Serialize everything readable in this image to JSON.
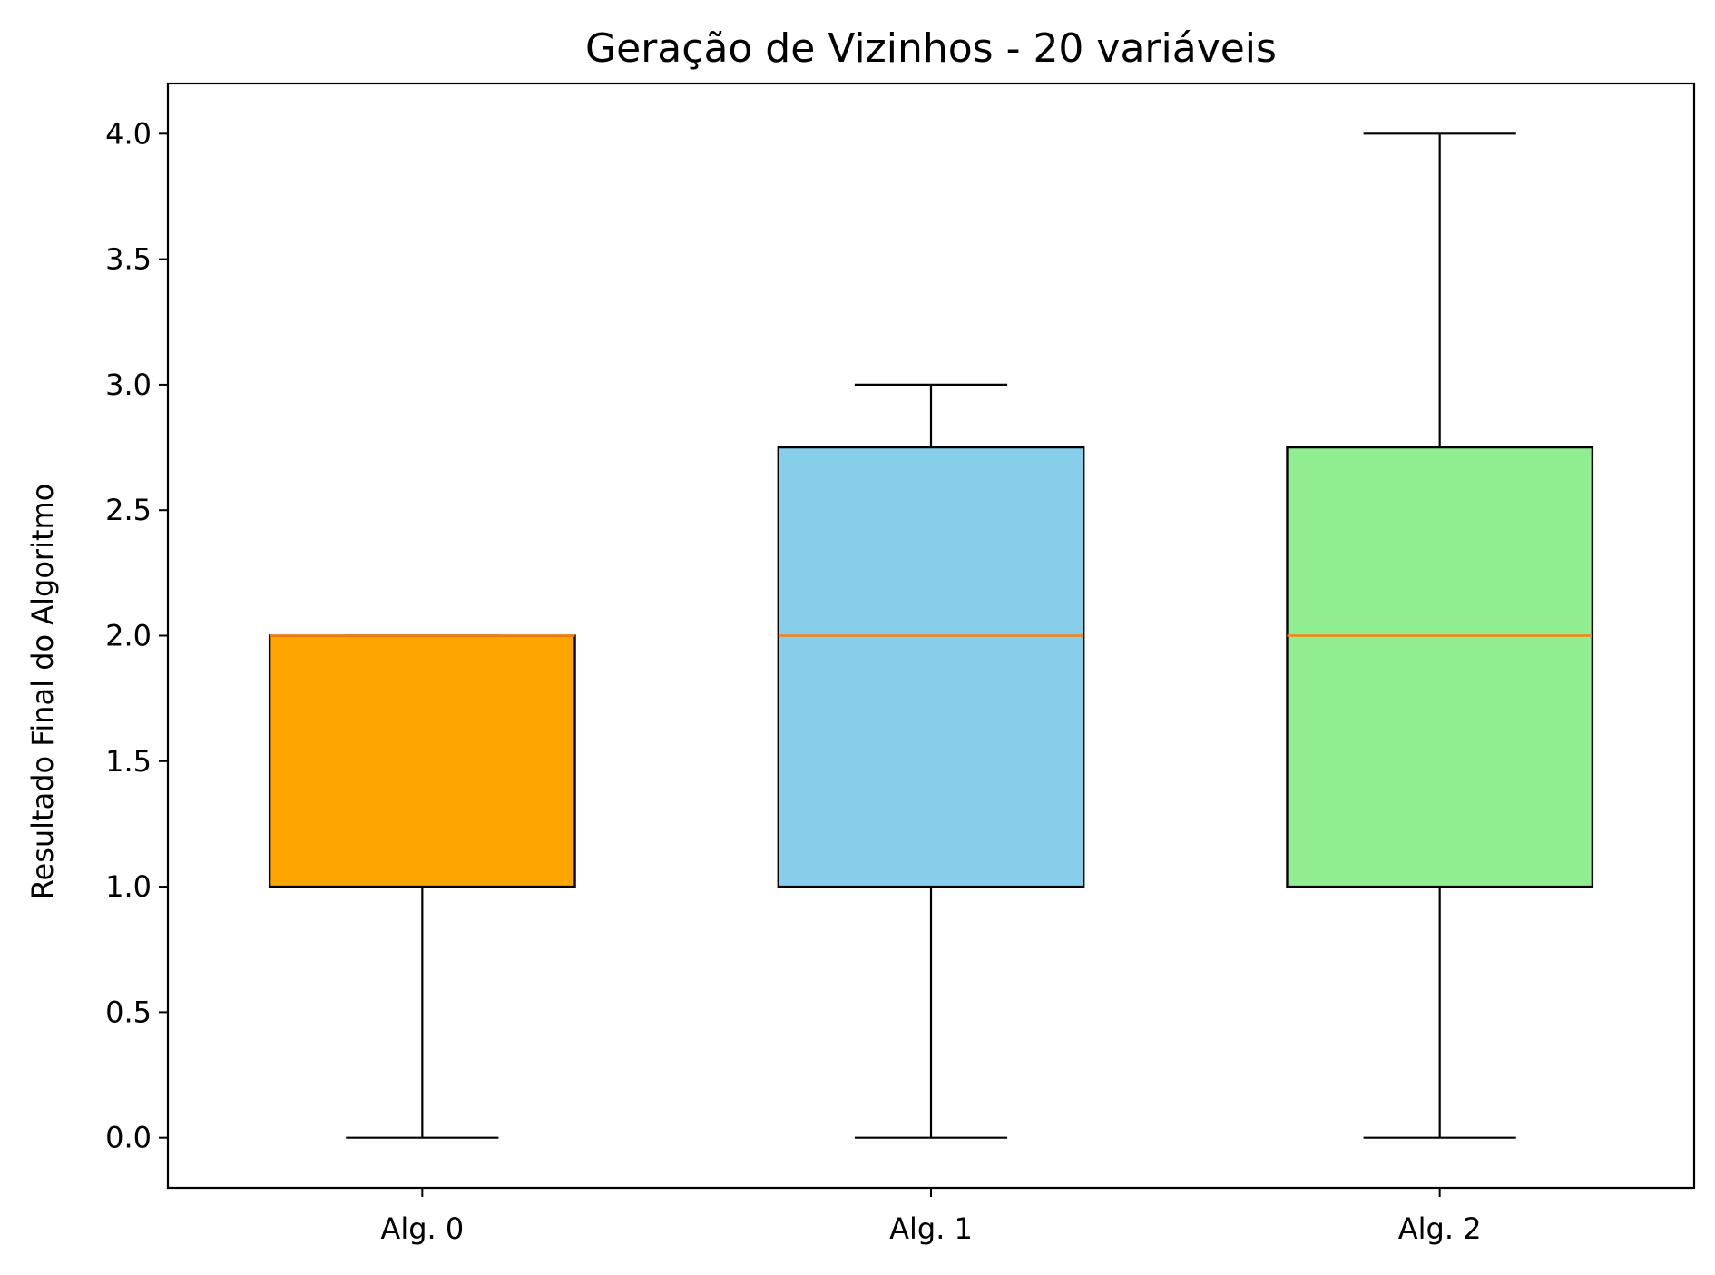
{
  "chart_data": {
    "type": "box",
    "title": "Geração de Vizinhos - 20 variáveis",
    "xlabel": "",
    "ylabel": "Resultado Final do Algoritmo",
    "ylim": [
      -0.2,
      4.2
    ],
    "yticks": [
      "0.0",
      "0.5",
      "1.0",
      "1.5",
      "2.0",
      "2.5",
      "3.0",
      "3.5",
      "4.0"
    ],
    "grid": false,
    "median_color": "#ff7f0e",
    "categories": [
      "Alg. 0",
      "Alg. 1",
      "Alg. 2"
    ],
    "boxes": [
      {
        "label": "Alg. 0",
        "whisker_low": 0.0,
        "q1": 1.0,
        "median": 2.0,
        "q3": 2.0,
        "whisker_high": 2.0,
        "color": "#ffa500"
      },
      {
        "label": "Alg. 1",
        "whisker_low": 0.0,
        "q1": 1.0,
        "median": 2.0,
        "q3": 2.75,
        "whisker_high": 3.0,
        "color": "#87ceeb"
      },
      {
        "label": "Alg. 2",
        "whisker_low": 0.0,
        "q1": 1.0,
        "median": 2.0,
        "q3": 2.75,
        "whisker_high": 4.0,
        "color": "#90ee90"
      }
    ]
  }
}
